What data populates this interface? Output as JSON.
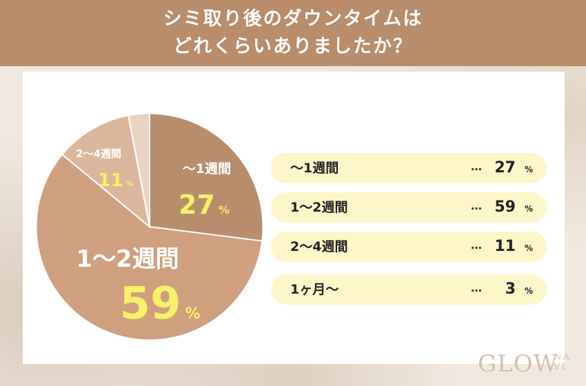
{
  "header": {
    "line1": "シミ取り後のダウンタイムは",
    "line2": "どれくらいありましたか？"
  },
  "chart_data": {
    "type": "pie",
    "categories": [
      "〜1週間",
      "1〜2週間",
      "2〜4週間",
      "1ヶ月〜"
    ],
    "values": [
      27,
      59,
      11,
      3
    ],
    "unit": "%",
    "colors": [
      "#b88d6b",
      "#d09f7e",
      "#dcb69b",
      "#e9d4c3"
    ],
    "labeled_slices": [
      {
        "label": "〜1週間",
        "value": "27",
        "unit": "%"
      },
      {
        "label": "1〜2週間",
        "value": "59",
        "unit": "%"
      },
      {
        "label": "2〜4週間",
        "value": "11",
        "unit": "%"
      }
    ],
    "legend_rows": [
      {
        "label": "〜1週間",
        "dots": "…",
        "value": "27",
        "unit": "%"
      },
      {
        "label": "1〜2週間",
        "dots": "…",
        "value": "59",
        "unit": "%"
      },
      {
        "label": "2〜4週間",
        "dots": "…",
        "value": "11",
        "unit": "%"
      },
      {
        "label": "1ヶ月〜",
        "dots": "…",
        "value": "3",
        "unit": "%"
      }
    ]
  },
  "logo": {
    "main": "GLOW",
    "sub_top": "NA",
    "sub_bottom": "VI"
  },
  "colors": {
    "header_bg": "#b98c6a",
    "highlight_text": "#f9f06a",
    "row_bg": "#fdf6c8"
  }
}
